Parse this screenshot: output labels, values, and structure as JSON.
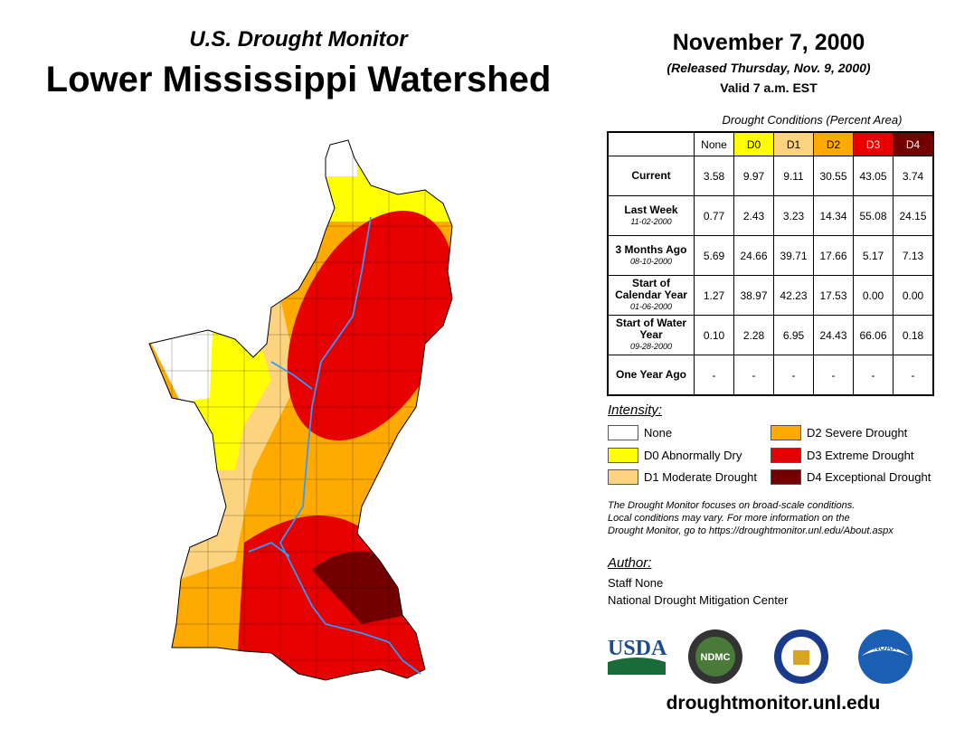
{
  "header": {
    "subtitle": "U.S. Drought Monitor",
    "title": "Lower Mississippi Watershed",
    "date": "November 7, 2000",
    "released": "(Released Thursday, Nov. 9, 2000)",
    "valid": "Valid 7 a.m. EST"
  },
  "table": {
    "caption": "Drought Conditions (Percent Area)",
    "columns": [
      "None",
      "D0",
      "D1",
      "D2",
      "D3",
      "D4"
    ],
    "column_colors": [
      "#ffffff",
      "#ffff00",
      "#fcd37f",
      "#ffaa00",
      "#e60000",
      "#730000"
    ],
    "rows": [
      {
        "label": "Current",
        "sub": "",
        "values": [
          "3.58",
          "9.97",
          "9.11",
          "30.55",
          "43.05",
          "3.74"
        ]
      },
      {
        "label": "Last Week",
        "sub": "11-02-2000",
        "values": [
          "0.77",
          "2.43",
          "3.23",
          "14.34",
          "55.08",
          "24.15"
        ]
      },
      {
        "label": "3 Months Ago",
        "sub": "08-10-2000",
        "values": [
          "5.69",
          "24.66",
          "39.71",
          "17.66",
          "5.17",
          "7.13"
        ]
      },
      {
        "label": "Start of Calendar Year",
        "sub": "01-06-2000",
        "values": [
          "1.27",
          "38.97",
          "42.23",
          "17.53",
          "0.00",
          "0.00"
        ]
      },
      {
        "label": "Start of Water Year",
        "sub": "09-28-2000",
        "values": [
          "0.10",
          "2.28",
          "6.95",
          "24.43",
          "66.06",
          "0.18"
        ]
      },
      {
        "label": "One Year Ago",
        "sub": "",
        "values": [
          "-",
          "-",
          "-",
          "-",
          "-",
          "-"
        ]
      }
    ]
  },
  "legend": {
    "title": "Intensity:",
    "items": [
      {
        "label": "None",
        "color": "#ffffff"
      },
      {
        "label": "D0 Abnormally Dry",
        "color": "#ffff00"
      },
      {
        "label": "D1 Moderate Drought",
        "color": "#fcd37f"
      },
      {
        "label": "D2 Severe Drought",
        "color": "#ffaa00"
      },
      {
        "label": "D3 Extreme Drought",
        "color": "#e60000"
      },
      {
        "label": "D4 Exceptional Drought",
        "color": "#730000"
      }
    ]
  },
  "note": [
    "The Drought Monitor focuses on broad-scale conditions.",
    "Local conditions may vary. For more information on the",
    "Drought Monitor, go to https://droughtmonitor.unl.edu/About.aspx"
  ],
  "author": {
    "heading": "Author:",
    "name": "Staff None",
    "org": "National Drought Mitigation Center"
  },
  "logos": [
    "USDA",
    "NDMC",
    "NOAA"
  ],
  "footer_url": "droughtmonitor.unl.edu"
}
